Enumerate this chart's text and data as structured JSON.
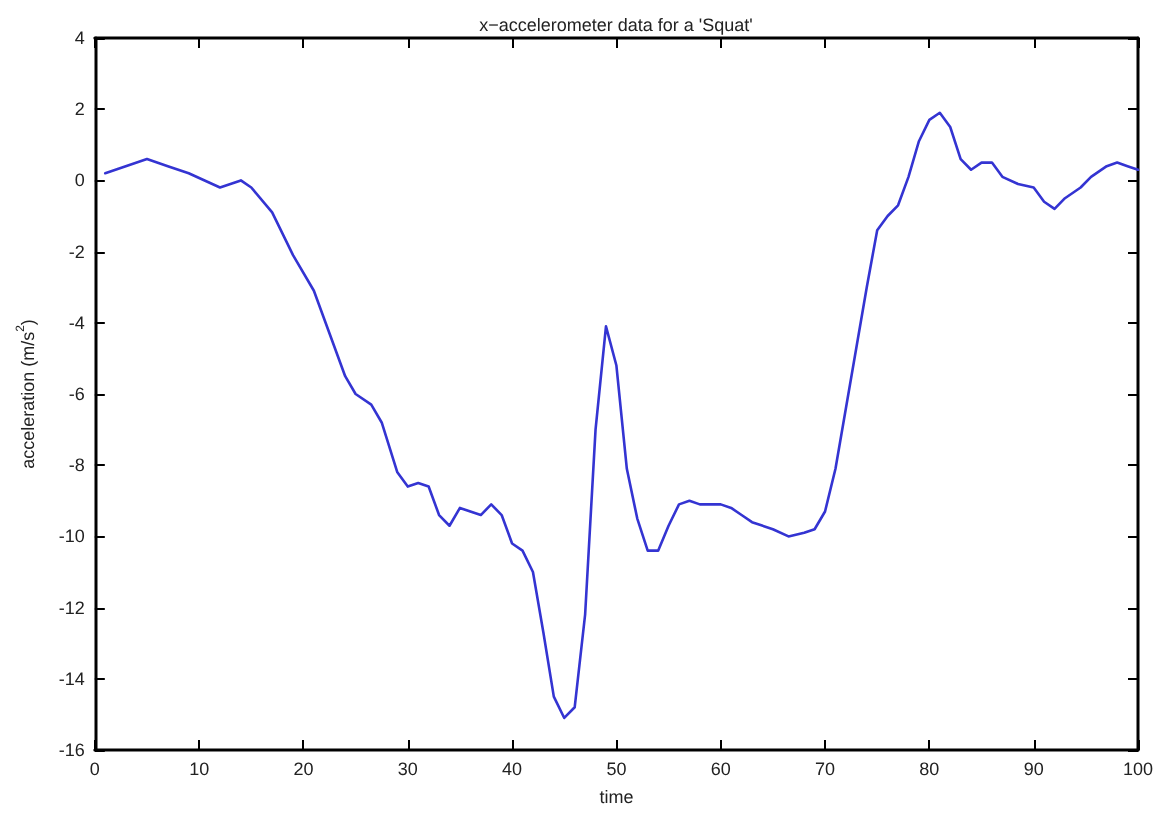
{
  "chart_data": {
    "type": "line",
    "title": "x−accelerometer data for a 'Squat'",
    "xlabel": "time",
    "ylabel": "acceleration (m/s$^{2}$)",
    "x": [
      1,
      5,
      7,
      9,
      12,
      14,
      15,
      17,
      19,
      21,
      22.5,
      24,
      25,
      26.5,
      27.5,
      29,
      30,
      31,
      32,
      33,
      34,
      35,
      36,
      37,
      38,
      39,
      40,
      41,
      42,
      43,
      44,
      45,
      46,
      47,
      48,
      49,
      50,
      51,
      52,
      53,
      54,
      55,
      56,
      57,
      58,
      59,
      60,
      61,
      62,
      63,
      65,
      66.5,
      68,
      69,
      70,
      71,
      72,
      73,
      74,
      75,
      76,
      77,
      78,
      79,
      80,
      81,
      82,
      83,
      84,
      85,
      86,
      87,
      88.5,
      90,
      91,
      92,
      93,
      94.5,
      95.5,
      97,
      98,
      99,
      100
    ],
    "series": [
      {
        "color": "#3434d2",
        "values": [
          0.2,
          0.6,
          0.4,
          0.2,
          -0.2,
          0.0,
          -0.2,
          -0.9,
          -2.1,
          -3.1,
          -4.3,
          -5.5,
          -6.0,
          -6.3,
          -6.8,
          -8.2,
          -8.6,
          -8.5,
          -8.6,
          -9.4,
          -9.7,
          -9.2,
          -9.3,
          -9.4,
          -9.1,
          -9.4,
          -10.2,
          -10.4,
          -11.0,
          -12.7,
          -14.5,
          -15.1,
          -14.8,
          -12.2,
          -7.0,
          -4.1,
          -5.2,
          -8.1,
          -9.5,
          -10.4,
          -10.4,
          -9.7,
          -9.1,
          -9.0,
          -9.1,
          -9.1,
          -9.1,
          -9.2,
          -9.4,
          -9.6,
          -9.8,
          -10.0,
          -9.9,
          -9.8,
          -9.3,
          -8.1,
          -6.4,
          -4.7,
          -3.0,
          -1.4,
          -1.0,
          -0.7,
          0.1,
          1.1,
          1.7,
          1.9,
          1.5,
          0.6,
          0.3,
          0.5,
          0.5,
          0.1,
          -0.1,
          -0.2,
          -0.6,
          -0.8,
          -0.5,
          -0.2,
          0.1,
          0.4,
          0.5,
          0.4,
          0.3
        ]
      }
    ],
    "xlim": [
      0,
      100
    ],
    "xticks": [
      0,
      10,
      20,
      30,
      40,
      50,
      60,
      70,
      80,
      90,
      100
    ],
    "ylim": [
      -16,
      4
    ],
    "yticks": [
      -16,
      -14,
      -12,
      -10,
      -8,
      -6,
      -4,
      -2,
      0,
      2,
      4
    ]
  }
}
